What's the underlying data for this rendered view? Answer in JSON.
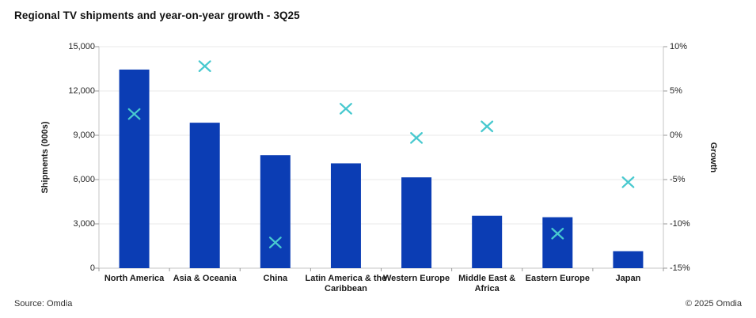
{
  "title": "Regional TV shipments and year-on-year growth - 3Q25",
  "footer": {
    "source": "Source: Omdia",
    "copyright": "© 2025 Omdia"
  },
  "colors": {
    "bar": "#0b3db4",
    "marker": "#48c9cf",
    "gridline": "#eaeaea",
    "axis_line": "#c6c6c6",
    "tick": "#999999",
    "text": "#1f1f1f"
  },
  "chart_data": {
    "type": "bar",
    "subtype": "bar-with-scatter-overlay",
    "categories": [
      "North America",
      "Asia & Oceania",
      "China",
      "Latin America & the\nCaribbean",
      "Western Europe",
      "Middle East &\nAfrica",
      "Eastern Europe",
      "Japan"
    ],
    "series": [
      {
        "name": "Shipments (000s)",
        "type": "bar",
        "axis": "left",
        "marker": "filled-bar",
        "values": [
          13450,
          9850,
          7650,
          7100,
          6150,
          3550,
          3450,
          1150
        ]
      },
      {
        "name": "Growth",
        "type": "scatter",
        "axis": "right",
        "marker": "x-cross",
        "values": [
          2.4,
          7.8,
          -12.1,
          3.0,
          -0.3,
          1.0,
          -11.1,
          -5.3
        ]
      }
    ],
    "left_axis": {
      "label": "Shipments (000s)",
      "min": 0,
      "max": 15000,
      "ticks": [
        0,
        3000,
        6000,
        9000,
        12000,
        15000
      ],
      "tick_labels": [
        "0",
        "3,000",
        "6,000",
        "9,000",
        "12,000",
        "15,000"
      ]
    },
    "right_axis": {
      "label": "Growth",
      "min": -15,
      "max": 10,
      "ticks": [
        -15,
        -10,
        -5,
        0,
        5,
        10
      ],
      "tick_labels": [
        "-15%",
        "-10%",
        "-5%",
        "0%",
        "5%",
        "10%"
      ]
    },
    "grid": true,
    "legend": "none"
  }
}
